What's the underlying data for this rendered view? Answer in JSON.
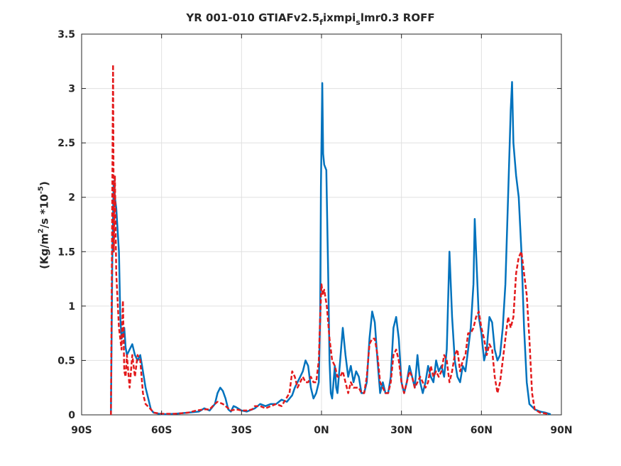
{
  "chart_data": {
    "type": "line",
    "title": "YR 001-010 GTIAFv2.5fixmpislmr0.3 ROFF",
    "title_parts": {
      "a": "YR 001-010 GTIAFv2.5",
      "b": "f",
      "c": "ixmpi",
      "d": "s",
      "e": "lmr0.3 ROFF"
    },
    "ylabel_parts": {
      "a": "(Kg/m",
      "b": "2",
      "c": "/s   *10",
      "d": "-5",
      "e": ")"
    },
    "xlim": [
      -90,
      90
    ],
    "ylim": [
      0,
      3.5
    ],
    "grid": true,
    "x_ticks": [
      -90,
      -60,
      -30,
      0,
      30,
      60,
      90
    ],
    "x_tick_labels": [
      "90S",
      "60S",
      "30S",
      "0N",
      "30N",
      "60N",
      "90N"
    ],
    "y_ticks": [
      0,
      0.5,
      1,
      1.5,
      2,
      2.5,
      3,
      3.5
    ],
    "y_tick_labels": [
      "0",
      "0.5",
      "1",
      "1.5",
      "2",
      "2.5",
      "3",
      "3.5"
    ],
    "series": [
      {
        "color": "#0072BD",
        "style": "solid",
        "points": [
          [
            -79,
            0
          ],
          [
            -78.5,
            1.4
          ],
          [
            -78,
            2.15
          ],
          [
            -77.5,
            2.0
          ],
          [
            -77,
            1.9
          ],
          [
            -76,
            1.5
          ],
          [
            -75.5,
            0.9
          ],
          [
            -75,
            0.7
          ],
          [
            -74,
            0.8
          ],
          [
            -73.5,
            0.62
          ],
          [
            -73,
            0.55
          ],
          [
            -72,
            0.6
          ],
          [
            -71,
            0.65
          ],
          [
            -70,
            0.55
          ],
          [
            -69,
            0.5
          ],
          [
            -68,
            0.55
          ],
          [
            -67,
            0.4
          ],
          [
            -66,
            0.25
          ],
          [
            -65,
            0.15
          ],
          [
            -64,
            0.05
          ],
          [
            -63,
            0.02
          ],
          [
            -60,
            0.005
          ],
          [
            -55,
            0.01
          ],
          [
            -50,
            0.02
          ],
          [
            -46,
            0.03
          ],
          [
            -44,
            0.06
          ],
          [
            -42,
            0.04
          ],
          [
            -40,
            0.1
          ],
          [
            -39,
            0.2
          ],
          [
            -38,
            0.25
          ],
          [
            -37,
            0.22
          ],
          [
            -36,
            0.15
          ],
          [
            -35,
            0.05
          ],
          [
            -34,
            0.03
          ],
          [
            -33,
            0.08
          ],
          [
            -32,
            0.07
          ],
          [
            -30,
            0.04
          ],
          [
            -28,
            0.03
          ],
          [
            -25,
            0.06
          ],
          [
            -23,
            0.1
          ],
          [
            -21,
            0.08
          ],
          [
            -19,
            0.1
          ],
          [
            -17,
            0.1
          ],
          [
            -15,
            0.14
          ],
          [
            -13,
            0.12
          ],
          [
            -11,
            0.18
          ],
          [
            -10,
            0.25
          ],
          [
            -9,
            0.3
          ],
          [
            -8,
            0.35
          ],
          [
            -7,
            0.4
          ],
          [
            -6,
            0.5
          ],
          [
            -5,
            0.45
          ],
          [
            -4,
            0.25
          ],
          [
            -3,
            0.15
          ],
          [
            -2,
            0.2
          ],
          [
            -1,
            0.3
          ],
          [
            -0.5,
            0.9
          ],
          [
            -0.2,
            2.1
          ],
          [
            0,
            2.5
          ],
          [
            0.3,
            3.05
          ],
          [
            0.6,
            2.4
          ],
          [
            1,
            2.3
          ],
          [
            1.8,
            2.25
          ],
          [
            2.5,
            1.3
          ],
          [
            3,
            0.5
          ],
          [
            3.5,
            0.2
          ],
          [
            4,
            0.15
          ],
          [
            5,
            0.45
          ],
          [
            5.5,
            0.25
          ],
          [
            6,
            0.2
          ],
          [
            7,
            0.5
          ],
          [
            8,
            0.8
          ],
          [
            9,
            0.55
          ],
          [
            10,
            0.35
          ],
          [
            11,
            0.45
          ],
          [
            12,
            0.3
          ],
          [
            13,
            0.4
          ],
          [
            14,
            0.35
          ],
          [
            15,
            0.2
          ],
          [
            16,
            0.2
          ],
          [
            17,
            0.3
          ],
          [
            18,
            0.7
          ],
          [
            19,
            0.95
          ],
          [
            20,
            0.85
          ],
          [
            21,
            0.5
          ],
          [
            22,
            0.2
          ],
          [
            23,
            0.3
          ],
          [
            24,
            0.2
          ],
          [
            25,
            0.2
          ],
          [
            26,
            0.35
          ],
          [
            27,
            0.8
          ],
          [
            28,
            0.9
          ],
          [
            29,
            0.7
          ],
          [
            30,
            0.3
          ],
          [
            31,
            0.2
          ],
          [
            32,
            0.3
          ],
          [
            33,
            0.45
          ],
          [
            34,
            0.35
          ],
          [
            35,
            0.25
          ],
          [
            36,
            0.55
          ],
          [
            37,
            0.3
          ],
          [
            38,
            0.2
          ],
          [
            39,
            0.3
          ],
          [
            40,
            0.45
          ],
          [
            41,
            0.35
          ],
          [
            42,
            0.3
          ],
          [
            43,
            0.5
          ],
          [
            44,
            0.4
          ],
          [
            45,
            0.45
          ],
          [
            46,
            0.35
          ],
          [
            47,
            0.6
          ],
          [
            48,
            1.5
          ],
          [
            49,
            0.9
          ],
          [
            50,
            0.5
          ],
          [
            51,
            0.35
          ],
          [
            52,
            0.3
          ],
          [
            53,
            0.45
          ],
          [
            54,
            0.4
          ],
          [
            55,
            0.6
          ],
          [
            56,
            0.8
          ],
          [
            57,
            1.2
          ],
          [
            57.5,
            1.8
          ],
          [
            58,
            1.5
          ],
          [
            59,
            0.9
          ],
          [
            60,
            0.75
          ],
          [
            61,
            0.5
          ],
          [
            62,
            0.6
          ],
          [
            63,
            0.9
          ],
          [
            64,
            0.85
          ],
          [
            65,
            0.6
          ],
          [
            66,
            0.5
          ],
          [
            67,
            0.55
          ],
          [
            68,
            0.8
          ],
          [
            69,
            1.2
          ],
          [
            70,
            2.0
          ],
          [
            71,
            2.8
          ],
          [
            71.5,
            3.06
          ],
          [
            72,
            2.5
          ],
          [
            73,
            2.2
          ],
          [
            74,
            2.0
          ],
          [
            75,
            1.5
          ],
          [
            76,
            0.8
          ],
          [
            77,
            0.3
          ],
          [
            78,
            0.1
          ],
          [
            80,
            0.05
          ],
          [
            82,
            0.03
          ],
          [
            84,
            0.02
          ],
          [
            86,
            0.005
          ]
        ]
      },
      {
        "color": "#E31A1C",
        "style": "dashed",
        "points": [
          [
            -79,
            0
          ],
          [
            -78.8,
            0.8
          ],
          [
            -78.5,
            2.0
          ],
          [
            -78.2,
            3.22
          ],
          [
            -77.9,
            1.5
          ],
          [
            -77.5,
            2.2
          ],
          [
            -77,
            1.3
          ],
          [
            -76,
            0.8
          ],
          [
            -75,
            0.6
          ],
          [
            -74.5,
            1.05
          ],
          [
            -74,
            0.4
          ],
          [
            -73.5,
            0.35
          ],
          [
            -73,
            0.55
          ],
          [
            -72,
            0.25
          ],
          [
            -71,
            0.55
          ],
          [
            -70,
            0.35
          ],
          [
            -69,
            0.55
          ],
          [
            -68,
            0.5
          ],
          [
            -67,
            0.2
          ],
          [
            -66,
            0.1
          ],
          [
            -64,
            0.05
          ],
          [
            -63,
            0.02
          ],
          [
            -60,
            0.01
          ],
          [
            -55,
            0.01
          ],
          [
            -50,
            0.02
          ],
          [
            -47,
            0.04
          ],
          [
            -44,
            0.05
          ],
          [
            -42,
            0.05
          ],
          [
            -40,
            0.1
          ],
          [
            -39,
            0.12
          ],
          [
            -37,
            0.1
          ],
          [
            -36,
            0.08
          ],
          [
            -34,
            0.04
          ],
          [
            -32,
            0.05
          ],
          [
            -30,
            0.04
          ],
          [
            -28,
            0.04
          ],
          [
            -26,
            0.05
          ],
          [
            -25,
            0.08
          ],
          [
            -23,
            0.08
          ],
          [
            -21,
            0.06
          ],
          [
            -19,
            0.08
          ],
          [
            -17,
            0.1
          ],
          [
            -15,
            0.08
          ],
          [
            -12,
            0.2
          ],
          [
            -11,
            0.4
          ],
          [
            -10,
            0.35
          ],
          [
            -9,
            0.25
          ],
          [
            -8,
            0.3
          ],
          [
            -7,
            0.35
          ],
          [
            -6,
            0.3
          ],
          [
            -5,
            0.3
          ],
          [
            -4,
            0.35
          ],
          [
            -3,
            0.3
          ],
          [
            -2,
            0.3
          ],
          [
            -1,
            0.5
          ],
          [
            -0.5,
            0.9
          ],
          [
            0,
            1.2
          ],
          [
            0.5,
            1.1
          ],
          [
            1,
            1.15
          ],
          [
            2,
            1.0
          ],
          [
            3,
            0.7
          ],
          [
            4,
            0.5
          ],
          [
            5,
            0.45
          ],
          [
            6,
            0.35
          ],
          [
            7,
            0.35
          ],
          [
            8,
            0.4
          ],
          [
            9,
            0.3
          ],
          [
            10,
            0.2
          ],
          [
            11,
            0.3
          ],
          [
            12,
            0.25
          ],
          [
            13,
            0.25
          ],
          [
            14,
            0.25
          ],
          [
            15,
            0.2
          ],
          [
            16,
            0.2
          ],
          [
            17,
            0.35
          ],
          [
            18,
            0.65
          ],
          [
            19,
            0.7
          ],
          [
            20,
            0.7
          ],
          [
            21,
            0.55
          ],
          [
            22,
            0.3
          ],
          [
            23,
            0.25
          ],
          [
            24,
            0.2
          ],
          [
            25,
            0.2
          ],
          [
            26,
            0.3
          ],
          [
            27,
            0.55
          ],
          [
            28,
            0.6
          ],
          [
            29,
            0.5
          ],
          [
            30,
            0.3
          ],
          [
            31,
            0.2
          ],
          [
            32,
            0.3
          ],
          [
            33,
            0.4
          ],
          [
            34,
            0.35
          ],
          [
            35,
            0.25
          ],
          [
            36,
            0.3
          ],
          [
            37,
            0.35
          ],
          [
            38,
            0.3
          ],
          [
            39,
            0.25
          ],
          [
            40,
            0.3
          ],
          [
            41,
            0.45
          ],
          [
            42,
            0.35
          ],
          [
            43,
            0.4
          ],
          [
            44,
            0.35
          ],
          [
            45,
            0.4
          ],
          [
            46,
            0.55
          ],
          [
            47,
            0.5
          ],
          [
            48,
            0.3
          ],
          [
            49,
            0.4
          ],
          [
            50,
            0.55
          ],
          [
            51,
            0.6
          ],
          [
            52,
            0.4
          ],
          [
            53,
            0.5
          ],
          [
            54,
            0.55
          ],
          [
            55,
            0.75
          ],
          [
            56,
            0.75
          ],
          [
            57,
            0.8
          ],
          [
            58,
            0.9
          ],
          [
            59,
            0.95
          ],
          [
            60,
            0.8
          ],
          [
            61,
            0.7
          ],
          [
            62,
            0.55
          ],
          [
            63,
            0.65
          ],
          [
            64,
            0.6
          ],
          [
            65,
            0.35
          ],
          [
            66,
            0.2
          ],
          [
            67,
            0.3
          ],
          [
            68,
            0.5
          ],
          [
            69,
            0.7
          ],
          [
            70,
            0.9
          ],
          [
            71,
            0.8
          ],
          [
            72,
            0.9
          ],
          [
            73,
            1.3
          ],
          [
            74,
            1.45
          ],
          [
            75,
            1.5
          ],
          [
            76,
            1.3
          ],
          [
            77,
            1.1
          ],
          [
            78,
            0.7
          ],
          [
            79,
            0.2
          ],
          [
            80,
            0.05
          ],
          [
            82,
            0.02
          ],
          [
            85,
            0.01
          ]
        ]
      }
    ]
  }
}
